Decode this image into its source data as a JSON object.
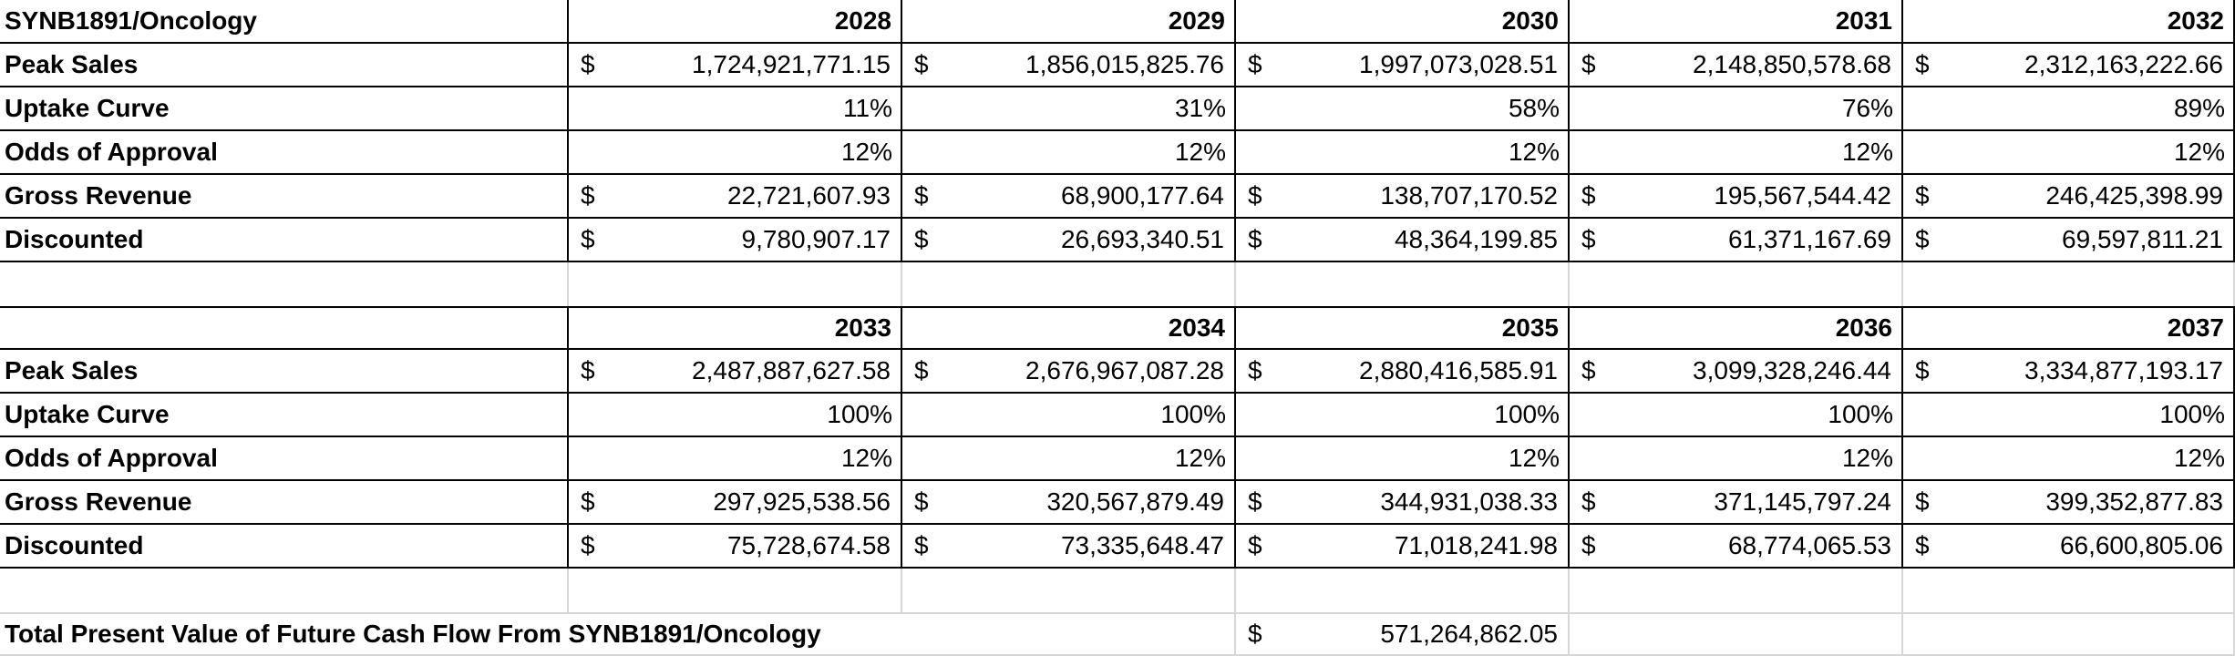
{
  "sheet": {
    "currency_symbol": "$",
    "colors": {
      "cell_border": "#000000",
      "gridline": "#d6d6d6",
      "text": "#000000",
      "background": "#ffffff"
    },
    "title_label": "SYNB1891/Oncology",
    "table1": {
      "years": [
        "2028",
        "2029",
        "2030",
        "2031",
        "2032"
      ],
      "peak_sales": {
        "label": "Peak Sales",
        "values": [
          "1,724,921,771.15",
          "1,856,015,825.76",
          "1,997,073,028.51",
          "2,148,850,578.68",
          "2,312,163,222.66"
        ]
      },
      "uptake_curve": {
        "label": "Uptake Curve",
        "values": [
          "11%",
          "31%",
          "58%",
          "76%",
          "89%"
        ]
      },
      "odds_of_approval": {
        "label": "Odds of Approval",
        "values": [
          "12%",
          "12%",
          "12%",
          "12%",
          "12%"
        ]
      },
      "gross_revenue": {
        "label": "Gross Revenue",
        "values": [
          "22,721,607.93",
          "68,900,177.64",
          "138,707,170.52",
          "195,567,544.42",
          "246,425,398.99"
        ]
      },
      "discounted": {
        "label": "Discounted",
        "values": [
          "9,780,907.17",
          "26,693,340.51",
          "48,364,199.85",
          "61,371,167.69",
          "69,597,811.21"
        ]
      }
    },
    "table2": {
      "years": [
        "2033",
        "2034",
        "2035",
        "2036",
        "2037"
      ],
      "peak_sales": {
        "label": "Peak Sales",
        "values": [
          "2,487,887,627.58",
          "2,676,967,087.28",
          "2,880,416,585.91",
          "3,099,328,246.44",
          "3,334,877,193.17"
        ]
      },
      "uptake_curve": {
        "label": "Uptake Curve",
        "values": [
          "100%",
          "100%",
          "100%",
          "100%",
          "100%"
        ]
      },
      "odds_of_approval": {
        "label": "Odds of Approval",
        "values": [
          "12%",
          "12%",
          "12%",
          "12%",
          "12%"
        ]
      },
      "gross_revenue": {
        "label": "Gross Revenue",
        "values": [
          "297,925,538.56",
          "320,567,879.49",
          "344,931,038.33",
          "371,145,797.24",
          "399,352,877.83"
        ]
      },
      "discounted": {
        "label": "Discounted",
        "values": [
          "75,728,674.58",
          "73,335,648.47",
          "71,018,241.98",
          "68,774,065.53",
          "66,600,805.06"
        ]
      }
    },
    "total": {
      "label": "Total Present Value of Future Cash Flow From SYNB1891/Oncology",
      "value": "571,264,862.05"
    }
  }
}
